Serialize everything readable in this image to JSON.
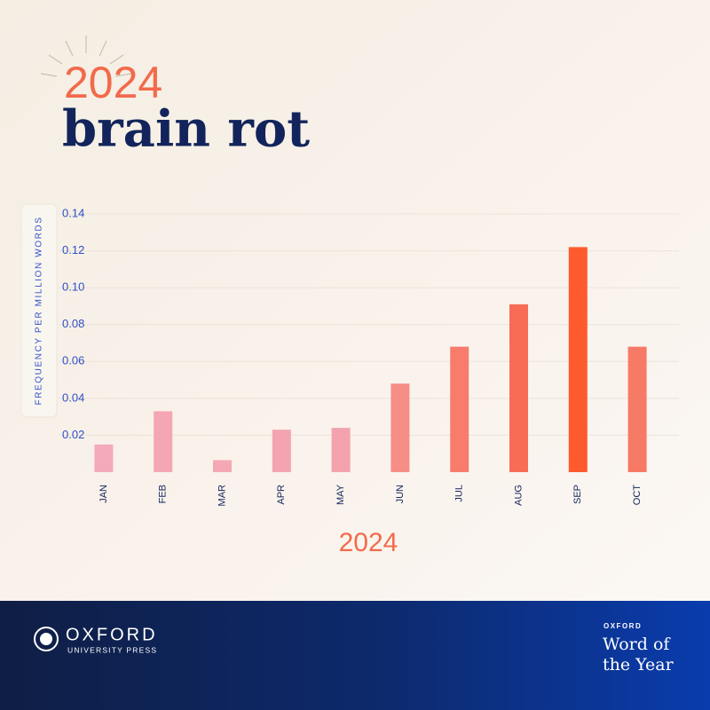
{
  "chart_data": {
    "type": "bar",
    "supertitle": "2024",
    "title": "brain rot",
    "ylabel": "FREQUENCY PER MILLION WORDS",
    "xlabel": "2024",
    "categories": [
      "JAN",
      "FEB",
      "MAR",
      "APR",
      "MAY",
      "JUN",
      "JUL",
      "AUG",
      "SEP",
      "OCT"
    ],
    "values": [
      0.015,
      0.033,
      0.0065,
      0.023,
      0.024,
      0.048,
      0.068,
      0.091,
      0.122,
      0.068
    ],
    "colors": [
      "#f4aab9",
      "#f4a6b4",
      "#f4a8b6",
      "#f4a4b1",
      "#f4a2ae",
      "#f68d86",
      "#f77c6c",
      "#f86c56",
      "#fd5a2e",
      "#f77a66"
    ],
    "ylim": [
      0,
      0.14
    ],
    "yticks": [
      0.02,
      0.04,
      0.06,
      0.08,
      {
        "value": 0.1,
        "label": "0.10"
      },
      0.12,
      0.14
    ],
    "grid": true
  },
  "footer": {
    "publisher": [
      "OXFORD",
      "UNIVERSITY PRESS"
    ],
    "badge": [
      "OXFORD",
      "Word of",
      "the Year"
    ]
  }
}
